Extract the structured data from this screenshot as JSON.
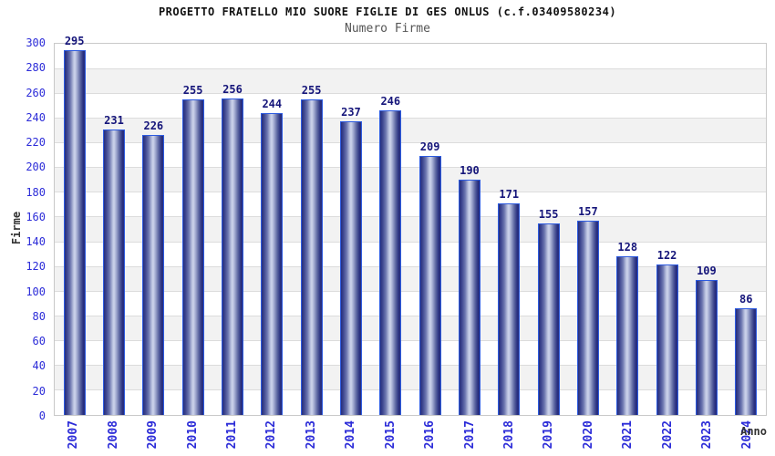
{
  "chart_data": {
    "type": "bar",
    "title": "PROGETTO FRATELLO MIO SUORE FIGLIE DI GES ONLUS (c.f.03409580234)",
    "subtitle": "Numero Firme",
    "xlabel": "Anno",
    "ylabel": "Firme",
    "categories": [
      "2007",
      "2008",
      "2009",
      "2010",
      "2011",
      "2012",
      "2013",
      "2014",
      "2015",
      "2016",
      "2017",
      "2018",
      "2019",
      "2020",
      "2021",
      "2022",
      "2023",
      "2024"
    ],
    "values": [
      295,
      231,
      226,
      255,
      256,
      244,
      255,
      237,
      246,
      209,
      190,
      171,
      155,
      157,
      128,
      122,
      109,
      86
    ],
    "ylim": [
      0,
      300
    ],
    "ytick_step": 20,
    "grid": true,
    "legend": "none",
    "banded_background": true
  },
  "colors": {
    "axis_tick_label": "#2c2cd8",
    "value_label": "#15157a",
    "bar_outline": "#2d5be0",
    "bar_dark": "#262d7d",
    "bar_highlight": "#ced4ec",
    "band_gray": "#f2f2f2",
    "grid_line": "#dcdcdc",
    "plot_border": "#c9c9c9",
    "title": "#111111",
    "subtitle": "#555555",
    "axis_title": "#333333",
    "background": "#ffffff"
  }
}
